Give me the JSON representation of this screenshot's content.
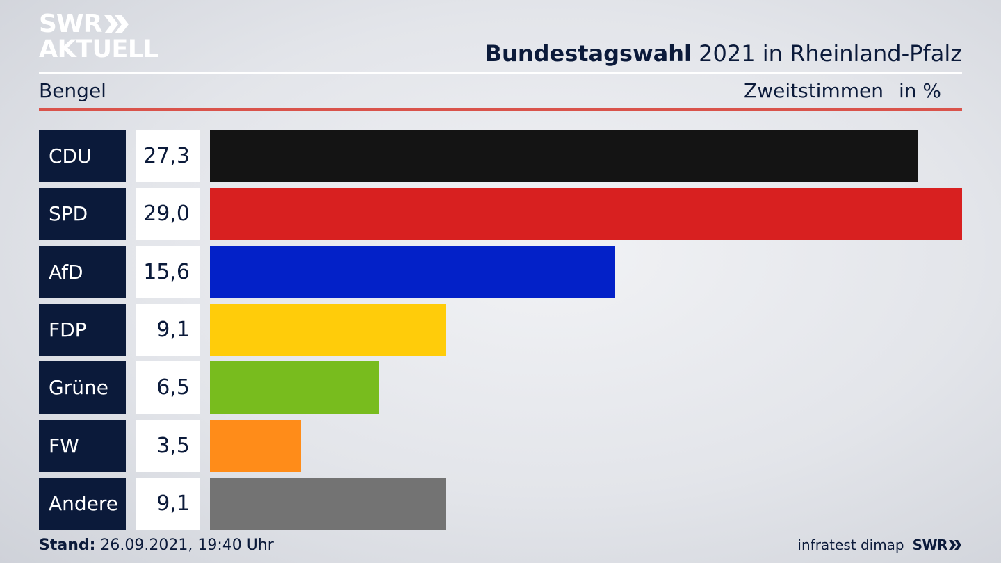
{
  "logo": {
    "line1": "SWR",
    "line2": "AKTUELL"
  },
  "header": {
    "title_bold": "Bundestagswahl",
    "title_rest": "2021 in Rheinland-Pfalz",
    "region": "Bengel",
    "measure": "Zweitstimmen",
    "unit": "in %"
  },
  "colors": {
    "navy": "#0b1a3a",
    "accent_red": "#d9534b"
  },
  "chart_data": {
    "type": "bar",
    "orientation": "horizontal",
    "categories": [
      "CDU",
      "SPD",
      "AfD",
      "FDP",
      "Grüne",
      "FW",
      "Andere"
    ],
    "values": [
      27.3,
      29.0,
      15.6,
      9.1,
      6.5,
      3.5,
      9.1
    ],
    "value_labels": [
      "27,3",
      "29,0",
      "15,6",
      "9,1",
      "6,5",
      "3,5",
      "9,1"
    ],
    "colors": [
      "#141414",
      "#d82020",
      "#0321c8",
      "#ffcc0a",
      "#78bc1e",
      "#ff8c19",
      "#737373"
    ],
    "xlim": [
      0,
      29.0
    ],
    "grid": false,
    "legend": "none"
  },
  "footer": {
    "stand_label": "Stand:",
    "stand_value": "26.09.2021, 19:40 Uhr",
    "source": "infratest dimap",
    "broadcaster": "SWR"
  }
}
